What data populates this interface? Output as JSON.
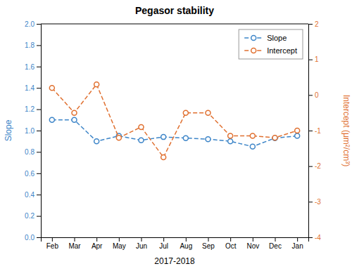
{
  "chart_data": {
    "type": "line",
    "title": "Pegasor stability",
    "xlabel": "2017-2018",
    "ylabel": "Slope",
    "y2label": "Intercept (μm²/cm³)",
    "categories": [
      "Feb",
      "Mar",
      "Apr",
      "May",
      "Jun",
      "Jul",
      "Aug",
      "Sep",
      "Oct",
      "Nov",
      "Dec",
      "Jan"
    ],
    "series": [
      {
        "name": "Slope",
        "color": "#3d85c8",
        "marker": "o",
        "line_style": "dashed",
        "values": [
          1.1,
          1.1,
          0.9,
          0.95,
          0.91,
          0.94,
          0.93,
          0.92,
          0.9,
          0.85,
          0.93,
          0.95
        ]
      },
      {
        "name": "Intercept",
        "color": "#e07030",
        "marker": "o",
        "line_style": "dashed",
        "axis": "y2",
        "values": [
          0.2,
          -0.5,
          0.3,
          -1.2,
          -0.9,
          -1.75,
          -0.5,
          -0.5,
          -1.15,
          -1.15,
          -1.2,
          -1.0
        ]
      }
    ],
    "ylim": [
      0,
      2
    ],
    "yticks": [
      {
        "value": 0,
        "label": "0.0"
      },
      0.2,
      0.4,
      0.6,
      0.8,
      {
        "value": 1.0,
        "label": "1.0"
      },
      1.2,
      1.4,
      1.6,
      1.8,
      {
        "value": 2.0,
        "label": "2.0"
      }
    ],
    "y2lim": [
      -4,
      2
    ],
    "y2ticks": [
      -4,
      -3,
      -2,
      -1,
      0,
      1,
      2
    ],
    "legend": "upper right",
    "grid": false
  }
}
